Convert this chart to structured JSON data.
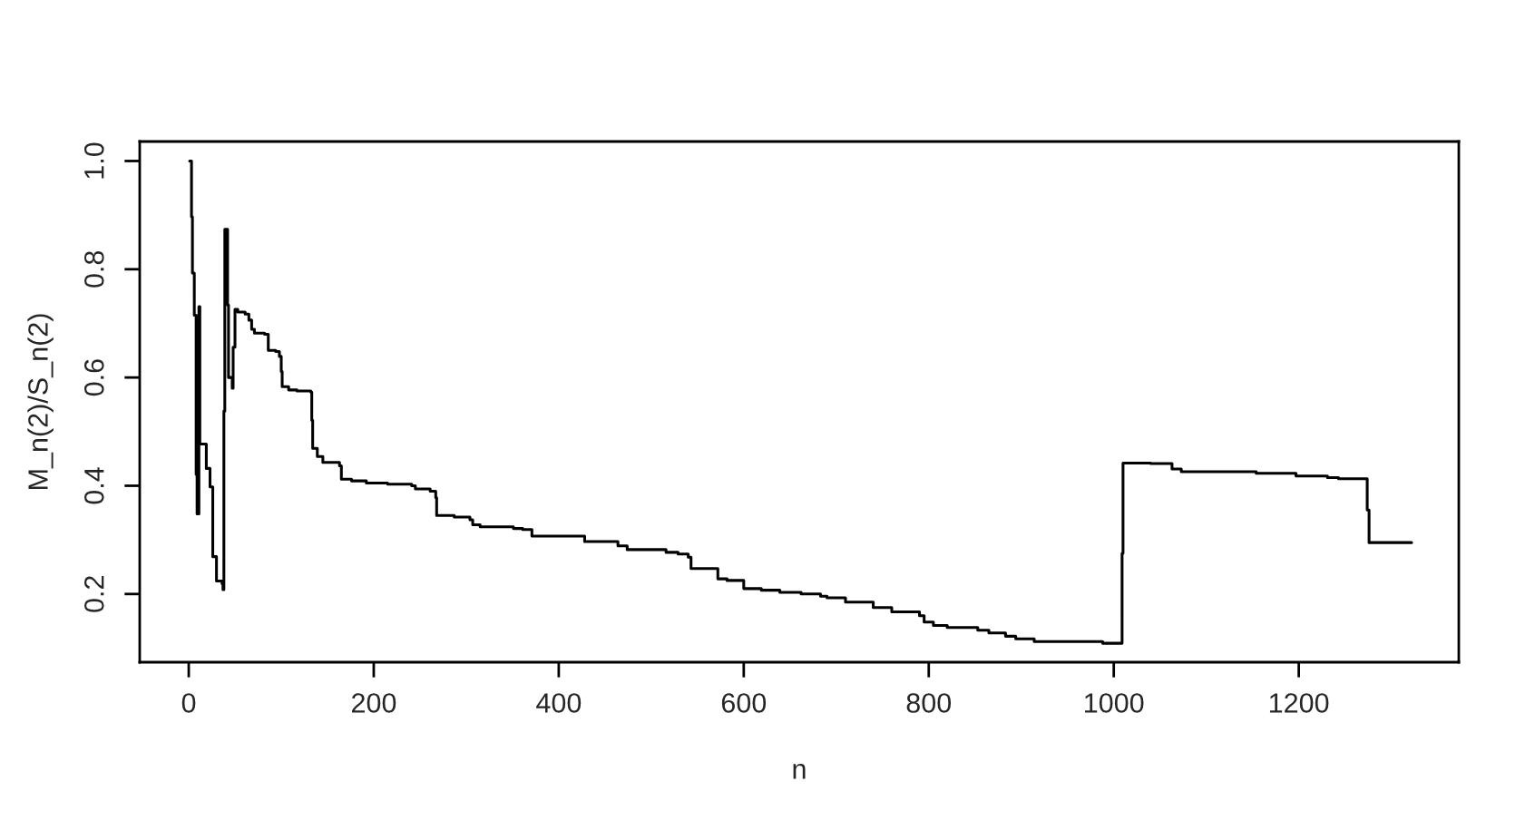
{
  "chart_data": {
    "type": "step",
    "xlabel": "n",
    "ylabel": "M_n(2)/S_n(2)",
    "x": [
      1,
      3,
      4,
      6,
      8,
      9,
      11,
      12,
      18,
      19,
      23,
      26,
      30,
      36,
      37,
      38,
      39,
      42,
      43,
      47,
      48,
      50,
      53,
      61,
      65,
      68,
      71,
      82,
      86,
      94,
      98,
      100,
      101,
      108,
      117,
      132,
      133,
      134,
      139,
      145,
      163,
      165,
      176,
      192,
      215,
      241,
      245,
      261,
      267,
      268,
      287,
      304,
      307,
      315,
      351,
      361,
      371,
      428,
      464,
      474,
      516,
      529,
      540,
      543,
      572,
      582,
      600,
      619,
      639,
      662,
      683,
      690,
      710,
      740,
      760,
      790,
      795,
      805,
      820,
      853,
      865,
      883,
      894,
      914,
      988,
      1009,
      1010,
      1040,
      1063,
      1073,
      1154,
      1197,
      1231,
      1243,
      1274,
      1276,
      1322
    ],
    "series": [
      {
        "color": "#000000",
        "values": [
          1.0,
          0.897,
          0.793,
          0.715,
          0.421,
          0.348,
          0.731,
          0.477,
          0.477,
          0.432,
          0.398,
          0.269,
          0.224,
          0.219,
          0.208,
          0.538,
          0.874,
          0.734,
          0.6,
          0.58,
          0.656,
          0.726,
          0.721,
          0.717,
          0.706,
          0.689,
          0.682,
          0.68,
          0.65,
          0.648,
          0.639,
          0.611,
          0.583,
          0.577,
          0.575,
          0.573,
          0.521,
          0.469,
          0.454,
          0.443,
          0.437,
          0.412,
          0.409,
          0.405,
          0.403,
          0.4,
          0.394,
          0.39,
          0.378,
          0.345,
          0.342,
          0.337,
          0.328,
          0.324,
          0.321,
          0.319,
          0.307,
          0.297,
          0.289,
          0.282,
          0.277,
          0.274,
          0.268,
          0.247,
          0.228,
          0.225,
          0.21,
          0.207,
          0.203,
          0.2,
          0.196,
          0.193,
          0.185,
          0.175,
          0.167,
          0.16,
          0.148,
          0.142,
          0.138,
          0.133,
          0.128,
          0.122,
          0.117,
          0.112,
          0.109,
          0.275,
          0.442,
          0.441,
          0.431,
          0.426,
          0.423,
          0.418,
          0.415,
          0.413,
          0.355,
          0.295,
          0.295
        ]
      }
    ],
    "xlim": [
      -53,
      1373
    ],
    "ylim": [
      0.074,
      1.036
    ],
    "xticks": [
      0,
      200,
      400,
      600,
      800,
      1000,
      1200
    ],
    "yticks": [
      0.2,
      0.4,
      0.6,
      0.8,
      {
        "value": 1,
        "label": "1.0"
      }
    ],
    "grid": false,
    "legend": false,
    "line_style": "solid",
    "marker": "none"
  }
}
